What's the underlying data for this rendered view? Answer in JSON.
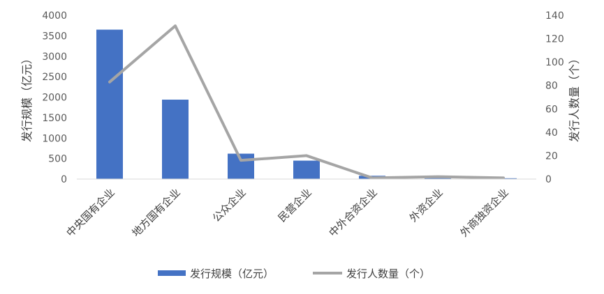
{
  "chart_data": {
    "type": "bar+line",
    "categories": [
      "中央国有企业",
      "地方国有企业",
      "公众企业",
      "民营企业",
      "中外合资企业",
      "外资企业",
      "外商独资企业"
    ],
    "series": [
      {
        "name": "发行规模（亿元）",
        "type": "bar",
        "axis": "left",
        "color": "#4472C4",
        "values": [
          3650,
          1940,
          620,
          450,
          80,
          50,
          20
        ]
      },
      {
        "name": "发行人数量（个）",
        "type": "line",
        "axis": "right",
        "color": "#A5A5A5",
        "values": [
          83,
          131,
          16,
          20,
          1,
          2,
          1
        ]
      }
    ],
    "ylabel_left": "发行规模（亿元）",
    "ylabel_right": "发行人数量（个）",
    "ylim_left": [
      0,
      4000
    ],
    "ylim_right": [
      0,
      140
    ],
    "yticks_left": [
      "0",
      "500",
      "1000",
      "1500",
      "2000",
      "2500",
      "3000",
      "3500",
      "4000"
    ],
    "yticks_right": [
      "0",
      "20",
      "40",
      "60",
      "80",
      "100",
      "120",
      "140"
    ],
    "grid": false,
    "legend_position": "bottom"
  }
}
